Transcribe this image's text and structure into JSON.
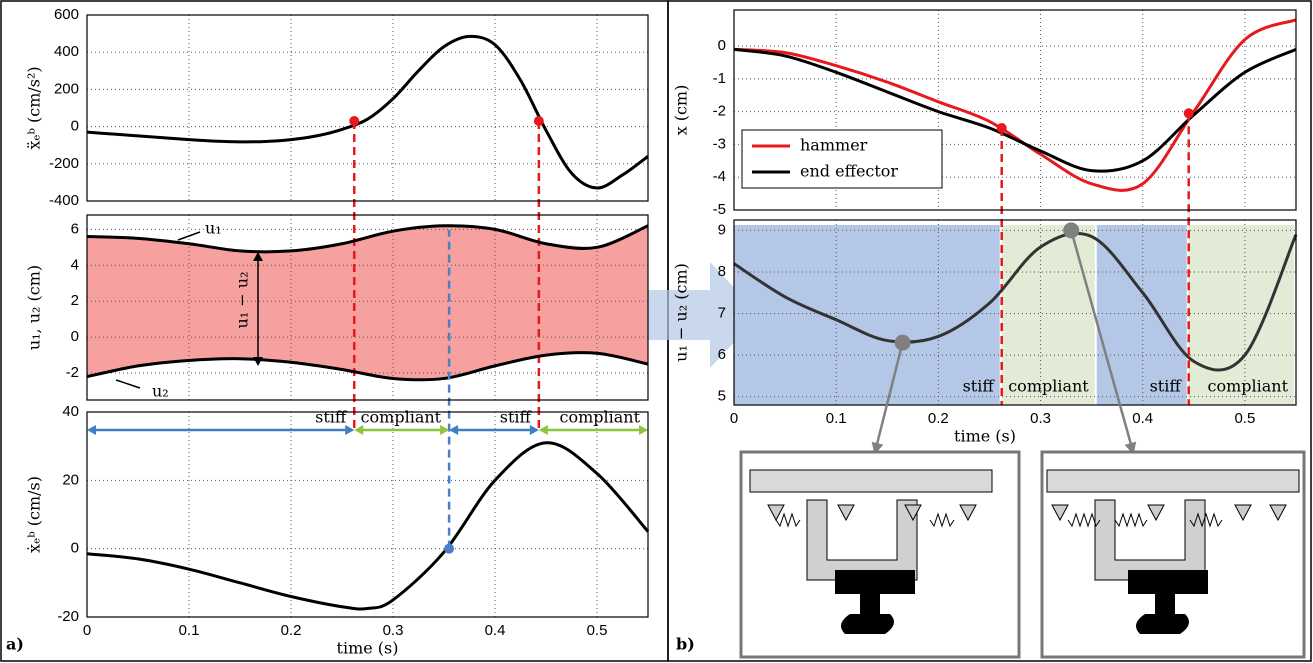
{
  "chart_data": [
    {
      "type": "line",
      "ylabel": "ẍₑᵇ (cm/s²)",
      "x": [
        0,
        0.025,
        0.05,
        0.075,
        0.1,
        0.125,
        0.15,
        0.175,
        0.2,
        0.225,
        0.25,
        0.275,
        0.3,
        0.325,
        0.35,
        0.375,
        0.4,
        0.425,
        0.45,
        0.475,
        0.5,
        0.525,
        0.55
      ],
      "values": [
        -30,
        -40,
        -50,
        -60,
        -70,
        -78,
        -82,
        -80,
        -70,
        -50,
        -15,
        40,
        150,
        300,
        430,
        485,
        440,
        250,
        -20,
        -250,
        -330,
        -260,
        -160
      ],
      "color": "#000000",
      "xlim": [
        0,
        0.55
      ],
      "ylim": [
        -400,
        600
      ],
      "yticks": [
        -400,
        -200,
        0,
        200,
        400,
        600
      ],
      "xticks": [
        0,
        0.1,
        0.2,
        0.3,
        0.4,
        0.5
      ],
      "xtick_labels": false,
      "grid": true,
      "points": {
        "x": [
          0.262,
          0.443
        ],
        "y": [
          30,
          30
        ],
        "color": "#e8191c"
      }
    },
    {
      "type": "band",
      "ylabel": "u₁, u₂ (cm)",
      "x": [
        0,
        0.05,
        0.1,
        0.15,
        0.2,
        0.25,
        0.3,
        0.35,
        0.4,
        0.45,
        0.5,
        0.55
      ],
      "series": [
        {
          "name": "u₁",
          "color": "#000000",
          "values": [
            5.6,
            5.5,
            5.2,
            4.8,
            4.8,
            5.2,
            5.9,
            6.2,
            6.0,
            5.2,
            5.0,
            6.2
          ]
        },
        {
          "name": "u₂",
          "color": "#000000",
          "values": [
            -2.2,
            -1.6,
            -1.3,
            -1.2,
            -1.4,
            -1.8,
            -2.3,
            -2.3,
            -1.6,
            -1.0,
            -0.9,
            -1.5
          ]
        }
      ],
      "fill": "#f7a0a0",
      "annotation": "u₁ − u₂",
      "xlim": [
        0,
        0.55
      ],
      "ylim": [
        -3.5,
        6.8
      ],
      "yticks": [
        -2,
        0,
        2,
        4,
        6
      ],
      "xticks": [
        0,
        0.1,
        0.2,
        0.3,
        0.4,
        0.5
      ],
      "xtick_labels": false,
      "grid": true
    },
    {
      "type": "line",
      "ylabel": "ẋₑᵇ (cm/s)",
      "xlabel": "time (s)",
      "x": [
        0,
        0.05,
        0.1,
        0.15,
        0.2,
        0.25,
        0.275,
        0.3,
        0.35,
        0.4,
        0.45,
        0.5,
        0.55
      ],
      "values": [
        -1.5,
        -3,
        -6,
        -10,
        -14,
        -17,
        -17.5,
        -15,
        -1,
        20,
        31,
        22,
        5
      ],
      "color": "#000000",
      "xlim": [
        0,
        0.55
      ],
      "ylim": [
        -20,
        40
      ],
      "yticks": [
        -20,
        0,
        20,
        40
      ],
      "xticks": [
        0,
        0.1,
        0.2,
        0.3,
        0.4,
        0.5
      ],
      "xtick_labels": true,
      "grid": true,
      "points": {
        "x": [
          0.355
        ],
        "y": [
          0
        ],
        "color": "#4a7fc1"
      },
      "regions": {
        "x": [
          0,
          0.262,
          0.355,
          0.443,
          0.55
        ],
        "labels": [
          "stiff",
          "compliant",
          "stiff",
          "compliant"
        ],
        "colors": [
          "#3f7fbf",
          "#8cc63f",
          "#3f7fbf",
          "#8cc63f"
        ]
      },
      "panel_label": "a)"
    },
    {
      "type": "line",
      "ylabel": "x (cm)",
      "x": [
        0,
        0.05,
        0.1,
        0.15,
        0.2,
        0.25,
        0.3,
        0.35,
        0.4,
        0.45,
        0.5,
        0.55
      ],
      "series": [
        {
          "name": "hammer",
          "color": "#e8191c",
          "values": [
            -0.1,
            -0.2,
            -0.6,
            -1.1,
            -1.7,
            -2.3,
            -3.3,
            -4.2,
            -4.2,
            -2.0,
            0.2,
            0.8
          ]
        },
        {
          "name": "end effector",
          "color": "#000000",
          "values": [
            -0.1,
            -0.3,
            -0.8,
            -1.4,
            -2.0,
            -2.5,
            -3.2,
            -3.8,
            -3.5,
            -2.1,
            -0.8,
            -0.1
          ]
        }
      ],
      "xlim": [
        0,
        0.55
      ],
      "ylim": [
        -5,
        1.1
      ],
      "yticks": [
        -5,
        -4,
        -3,
        -2,
        -1,
        0
      ],
      "xticks": [
        0,
        0.1,
        0.2,
        0.3,
        0.4,
        0.5
      ],
      "xtick_labels": false,
      "grid": true,
      "legend": "upper-left",
      "points": {
        "x": [
          0.262,
          0.445
        ],
        "y": [
          -2.5,
          -2.05
        ],
        "color": "#e8191c"
      }
    },
    {
      "type": "line",
      "ylabel": "u₁ − u₂ (cm)",
      "xlabel": "time (s)",
      "x": [
        0,
        0.05,
        0.1,
        0.15,
        0.2,
        0.25,
        0.3,
        0.35,
        0.4,
        0.45,
        0.5,
        0.55
      ],
      "values": [
        8.2,
        7.4,
        6.85,
        6.35,
        6.45,
        7.25,
        8.6,
        8.85,
        7.5,
        5.85,
        6.0,
        8.9
      ],
      "color": "#333333",
      "xlim": [
        0,
        0.55
      ],
      "ylim": [
        4.8,
        9.25
      ],
      "yticks": [
        5,
        6,
        7,
        8,
        9
      ],
      "xticks": [
        0,
        0.1,
        0.2,
        0.3,
        0.4,
        0.5
      ],
      "xtick_labels": true,
      "grid": true,
      "regions": {
        "x": [
          0,
          0.262,
          0.355,
          0.445,
          0.55
        ],
        "labels": [
          "stiff",
          "compliant",
          "stiff",
          "compliant"
        ],
        "colors": [
          "#b4c7e7",
          "#e2ebd5",
          "#b4c7e7",
          "#e2ebd5"
        ]
      },
      "points": {
        "x": [
          0.165,
          0.33
        ],
        "y": [
          6.3,
          9.0
        ],
        "color": "#808080"
      },
      "panel_label": "b)"
    }
  ]
}
